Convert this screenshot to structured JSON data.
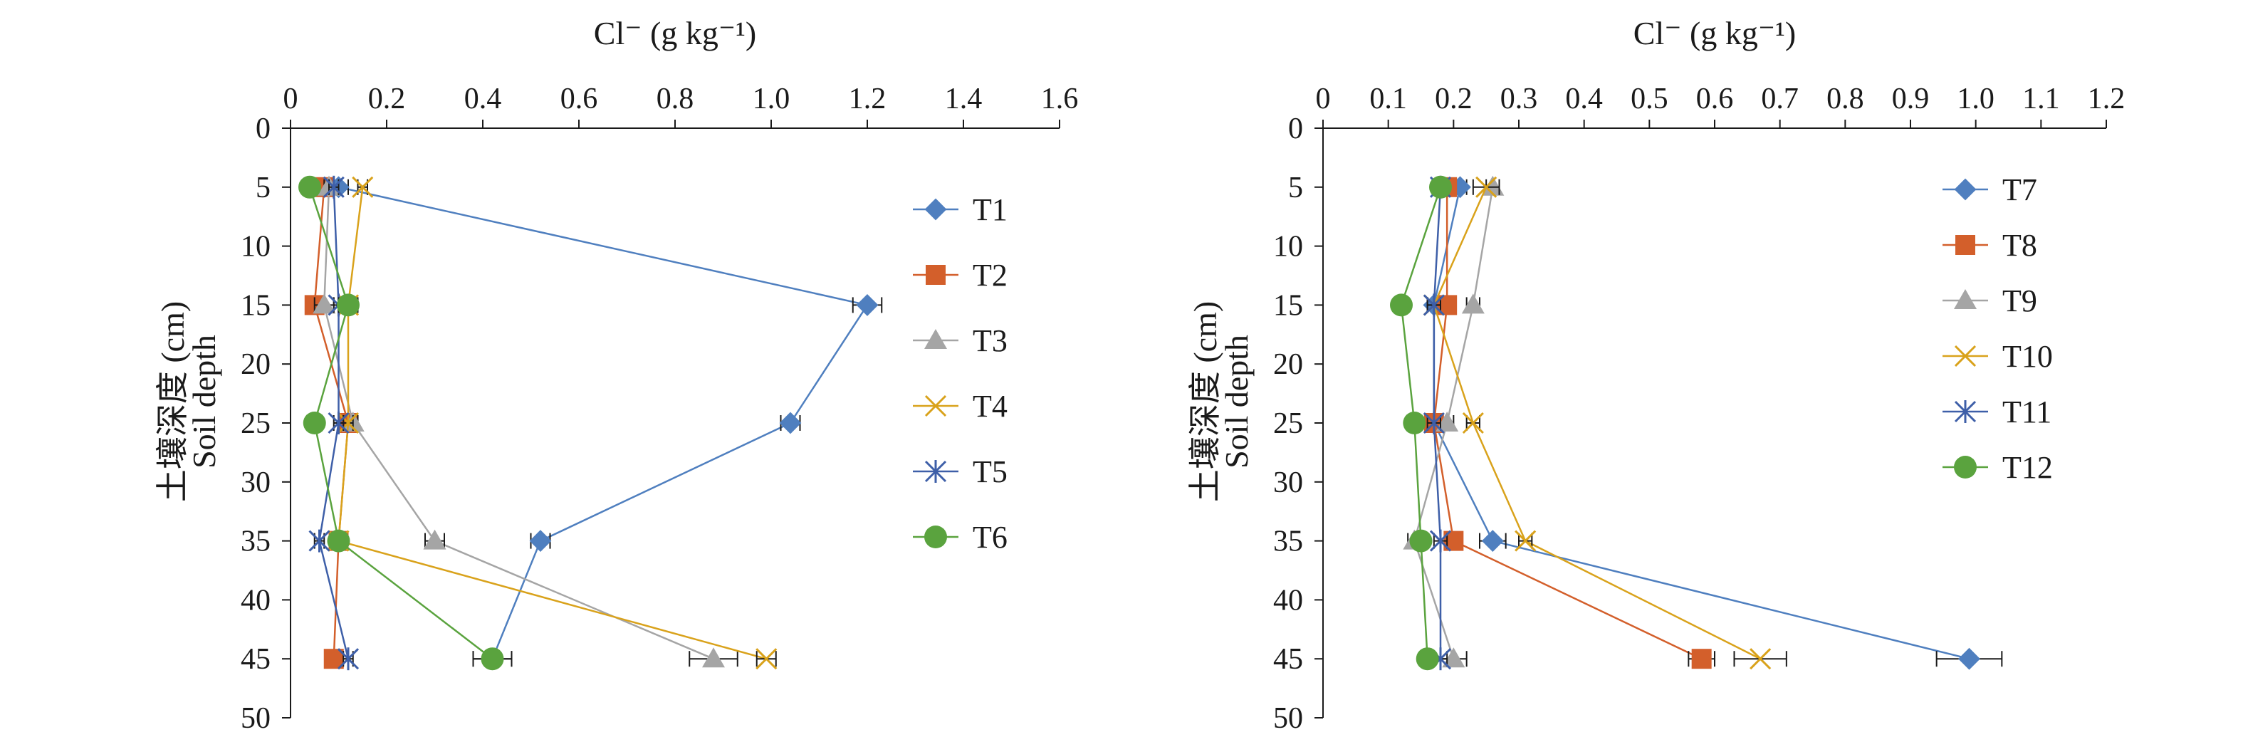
{
  "colors": {
    "T1": "#4f7fbf",
    "T2": "#d35f2b",
    "T3": "#a5a5a5",
    "T4": "#d9a21b",
    "T5": "#3e5fa8",
    "T6": "#5aa33e",
    "T7": "#4f7fbf",
    "T8": "#d35f2b",
    "T9": "#a5a5a5",
    "T10": "#d9a21b",
    "T11": "#3e5fa8",
    "T12": "#5aa33e",
    "axis": "#1a1a1a",
    "errorbar": "#1a1a1a"
  },
  "chart_data": [
    {
      "type": "line",
      "xlabel": "Cl⁻ (g kg⁻¹)",
      "ylabel_cn": "土壤深度 (cm)",
      "ylabel_en": "Soil depth",
      "xlim": [
        0,
        1.6
      ],
      "xticks": [
        "0",
        "0.2",
        "0.4",
        "0.6",
        "0.8",
        "1.0",
        "1.2",
        "1.4",
        "1.6"
      ],
      "xtick_values": [
        0,
        0.2,
        0.4,
        0.6,
        0.8,
        1.0,
        1.2,
        1.4,
        1.6
      ],
      "ylim": [
        0,
        50
      ],
      "y_inverted": true,
      "yticks": [
        "0",
        "5",
        "10",
        "15",
        "20",
        "25",
        "30",
        "35",
        "40",
        "45",
        "50"
      ],
      "ytick_values": [
        0,
        5,
        10,
        15,
        20,
        25,
        30,
        35,
        40,
        45,
        50
      ],
      "depths": [
        5,
        15,
        25,
        35,
        45
      ],
      "legend_position": "right",
      "series": [
        {
          "name": "T1",
          "marker": "diamond",
          "values": [
            0.1,
            1.2,
            1.04,
            0.52,
            0.42
          ],
          "errors": [
            0.02,
            0.03,
            0.02,
            0.02,
            0.04
          ]
        },
        {
          "name": "T2",
          "marker": "square",
          "values": [
            0.07,
            0.05,
            0.12,
            0.1,
            0.09
          ],
          "errors": [
            0.01,
            0.01,
            0.01,
            0.01,
            0.01
          ]
        },
        {
          "name": "T3",
          "marker": "triangle",
          "values": [
            0.08,
            0.07,
            0.13,
            0.3,
            0.88
          ],
          "errors": [
            0.01,
            0.02,
            0.01,
            0.02,
            0.05
          ]
        },
        {
          "name": "T4",
          "marker": "x",
          "values": [
            0.15,
            0.12,
            0.12,
            0.1,
            0.99
          ],
          "errors": [
            0.01,
            0.01,
            0.01,
            0.01,
            0.02
          ]
        },
        {
          "name": "T5",
          "marker": "star",
          "values": [
            0.09,
            0.1,
            0.1,
            0.06,
            0.12
          ],
          "errors": [
            0.01,
            0.01,
            0.01,
            0.01,
            0.01
          ]
        },
        {
          "name": "T6",
          "marker": "circle",
          "values": [
            0.04,
            0.12,
            0.05,
            0.1,
            0.42
          ],
          "errors": [
            0.01,
            0.02,
            0.01,
            0.01,
            0.04
          ]
        }
      ]
    },
    {
      "type": "line",
      "xlabel": "Cl⁻ (g kg⁻¹)",
      "ylabel_cn": "土壤深度 (cm)",
      "ylabel_en": "Soil depth",
      "xlim": [
        0,
        1.2
      ],
      "xticks": [
        "0",
        "0.1",
        "0.2",
        "0.3",
        "0.4",
        "0.5",
        "0.6",
        "0.7",
        "0.8",
        "0.9",
        "1.0",
        "1.1",
        "1.2"
      ],
      "xtick_values": [
        0,
        0.1,
        0.2,
        0.3,
        0.4,
        0.5,
        0.6,
        0.7,
        0.8,
        0.9,
        1.0,
        1.1,
        1.2
      ],
      "ylim": [
        0,
        50
      ],
      "y_inverted": true,
      "yticks": [
        "0",
        "5",
        "10",
        "15",
        "20",
        "25",
        "30",
        "35",
        "40",
        "45",
        "50"
      ],
      "ytick_values": [
        0,
        5,
        10,
        15,
        20,
        25,
        30,
        35,
        40,
        45,
        50
      ],
      "depths": [
        5,
        15,
        25,
        35,
        45
      ],
      "legend_position": "right",
      "series": [
        {
          "name": "T7",
          "marker": "diamond",
          "values": [
            0.21,
            0.17,
            0.17,
            0.26,
            0.99
          ],
          "errors": [
            0.01,
            0.01,
            0.01,
            0.02,
            0.05
          ]
        },
        {
          "name": "T8",
          "marker": "square",
          "values": [
            0.19,
            0.19,
            0.17,
            0.2,
            0.58
          ],
          "errors": [
            0.01,
            0.01,
            0.01,
            0.01,
            0.02
          ]
        },
        {
          "name": "T9",
          "marker": "triangle",
          "values": [
            0.26,
            0.23,
            0.19,
            0.14,
            0.2
          ],
          "errors": [
            0.01,
            0.01,
            0.01,
            0.01,
            0.02
          ]
        },
        {
          "name": "T10",
          "marker": "x",
          "values": [
            0.25,
            0.17,
            0.23,
            0.31,
            0.67
          ],
          "errors": [
            0.02,
            0.01,
            0.01,
            0.01,
            0.04
          ]
        },
        {
          "name": "T11",
          "marker": "star",
          "values": [
            0.18,
            0.17,
            0.17,
            0.18,
            0.18
          ],
          "errors": [
            0.01,
            0.01,
            0.01,
            0.01,
            0.01
          ]
        },
        {
          "name": "T12",
          "marker": "circle",
          "values": [
            0.18,
            0.12,
            0.14,
            0.15,
            0.16
          ],
          "errors": [
            0.01,
            0.01,
            0.01,
            0.01,
            0.01
          ]
        }
      ]
    }
  ]
}
